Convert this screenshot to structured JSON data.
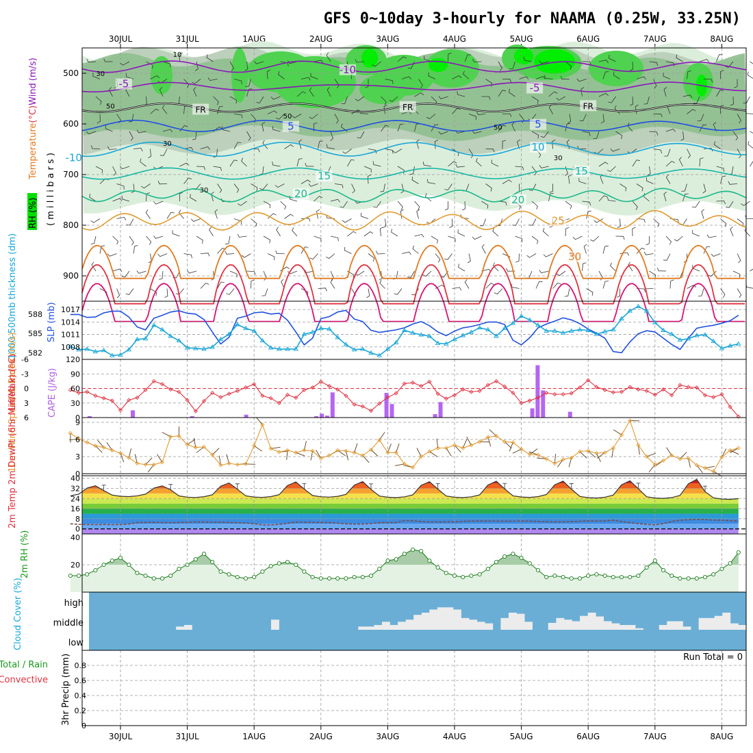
{
  "header": {
    "title": "GFS 0~10day 3-hourly for NAAMA (0.25W, 33.25N)"
  },
  "dates": [
    "30JUL",
    "31JUL",
    "1AUG",
    "2AUG",
    "3AUG",
    "4AUG",
    "5AUG",
    "6AUG",
    "7AUG",
    "8AUG"
  ],
  "colors": {
    "purple": "#8a16b8",
    "blue": "#1f4fe0",
    "cyan": "#18a6d8",
    "teal": "#16b6a6",
    "green": "#1ab88a",
    "orange": "#e09a30",
    "dorange": "#e07a20",
    "red": "#e03040",
    "magenta": "#d81070",
    "rh1": "#dbeedb",
    "rh2": "#bcd0bc",
    "rh3": "#8fbf8f",
    "rh4": "#4fd24f",
    "rh5": "#00ee00",
    "cloudbg": "#6aaed6"
  },
  "chart_data": [
    {
      "type": "contour",
      "panel": "upper-air",
      "ylabel_parts": [
        "Temperature",
        "(°C)",
        "Wind",
        "(m/s)"
      ],
      "ylabel2": "( m i l l i b a r s )",
      "rh_label": "RH (%)",
      "y_ticks": [
        "500",
        "600",
        "700",
        "800",
        "900"
      ],
      "ylim": [
        450,
        950
      ],
      "temperature_labels": [
        {
          "text": "-10",
          "day": 3.4,
          "p": 493,
          "color": "purple"
        },
        {
          "text": "-5",
          "day": 0.05,
          "p": 521,
          "color": "purple"
        },
        {
          "text": "-5",
          "day": 6.2,
          "p": 529,
          "color": "purple"
        },
        {
          "text": "FR",
          "day": 1.2,
          "p": 571,
          "color": "black"
        },
        {
          "text": "FR",
          "day": 4.3,
          "p": 566,
          "color": "black"
        },
        {
          "text": "FR",
          "day": 7.0,
          "p": 564,
          "color": "black"
        },
        {
          "text": "5",
          "day": 2.55,
          "p": 605,
          "color": "blue"
        },
        {
          "text": "5",
          "day": 6.25,
          "p": 601,
          "color": "blue"
        },
        {
          "text": "-10",
          "day": -0.7,
          "p": 667,
          "color": "cyan"
        },
        {
          "text": "10",
          "day": 6.25,
          "p": 646,
          "color": "cyan"
        },
        {
          "text": "15",
          "day": 3.05,
          "p": 703,
          "color": "teal"
        },
        {
          "text": "15",
          "day": 6.9,
          "p": 693,
          "color": "teal"
        },
        {
          "text": "20",
          "day": 2.7,
          "p": 738,
          "color": "green"
        },
        {
          "text": "20",
          "day": 5.95,
          "p": 750,
          "color": "green"
        },
        {
          "text": "25",
          "day": 6.55,
          "p": 791,
          "color": "orange"
        },
        {
          "text": "30",
          "day": 6.8,
          "p": 862,
          "color": "dorange"
        }
      ],
      "rh_shading_labels": [
        {
          "text": "10",
          "day": 0.85,
          "p": 462
        },
        {
          "text": "30",
          "day": -0.3,
          "p": 500
        },
        {
          "text": "50",
          "day": -0.15,
          "p": 564
        },
        {
          "text": "30",
          "day": 0.7,
          "p": 638
        },
        {
          "text": "30",
          "day": 1.25,
          "p": 730
        },
        {
          "text": "50",
          "day": 2.5,
          "p": 584
        },
        {
          "text": "50",
          "day": 5.65,
          "p": 606
        },
        {
          "text": "30",
          "day": 6.55,
          "p": 666
        }
      ]
    },
    {
      "type": "line",
      "panel": "slp-thickness",
      "ylabel_left": "1000-500mb thickness (dm)",
      "ylabel_right": "SLP (mb)",
      "left_ticks": [
        "588",
        "585",
        "582"
      ],
      "right_ticks": [
        "1017",
        "1014",
        "1011",
        "1008"
      ],
      "series": [
        {
          "name": "SLP",
          "color": "blue",
          "ylim": [
            1005,
            1019
          ],
          "values": [
            1015.8,
            1015.8,
            1015.1,
            1015.2,
            1016.2,
            1016.6,
            1016.6,
            1015.2,
            1012.8,
            1012.1,
            1014.9,
            1015.6,
            1016.4,
            1016.7,
            1016.1,
            1015.9,
            1014.6,
            1011.6,
            1008.7,
            1010.3,
            1014.9,
            1015.4,
            1016.2,
            1016.4,
            1015.9,
            1016.1,
            1014.4,
            1011.6,
            1008.5,
            1010.1,
            1014.8,
            1015.3,
            1016.4,
            1016.8,
            1014.7,
            1014.1,
            1012.0,
            1011.5,
            1011.8,
            1012.1,
            1012.6,
            1013.5,
            1014.1,
            1013.1,
            1011.6,
            1010.7,
            1011.8,
            1012.6,
            1012.9,
            1013.4,
            1014.0,
            1014.0,
            1013.4,
            1009.6,
            1008.5,
            1010.2,
            1012.6,
            1013.5,
            1014.2,
            1015.0,
            1014.5,
            1013.6,
            1012.3,
            1011.3,
            1010.1,
            1006.9,
            1006.6,
            1009.2,
            1011.2,
            1011.9,
            1011.6,
            1010.1,
            1008.6,
            1007.4,
            1010.1,
            1012.5,
            1012.9,
            1013.2,
            1013.7,
            1014.3,
            1015.6
          ]
        },
        {
          "name": "Thickness",
          "color": "cyan",
          "ylim": [
            581,
            590
          ],
          "values": [
            583.0,
            582.5,
            582.6,
            582.2,
            582.4,
            581.6,
            581.7,
            582.5,
            584.1,
            584.2,
            586.3,
            585.6,
            584.6,
            583.9,
            582.8,
            582.7,
            582.6,
            582.9,
            584.1,
            584.9,
            586.4,
            585.8,
            585.4,
            583.9,
            582.8,
            582.6,
            582.6,
            582.6,
            584.9,
            585.2,
            585.8,
            585.7,
            584.4,
            583.3,
            582.5,
            582.6,
            582.0,
            581.6,
            582.6,
            583.6,
            585.5,
            585.1,
            584.8,
            584.6,
            583.5,
            583.4,
            584.1,
            584.7,
            585.2,
            585.9,
            585.6,
            584.6,
            585.8,
            586.6,
            587.7,
            587.1,
            586.3,
            585.4,
            585.4,
            585.1,
            585.4,
            585.6,
            585.5,
            584.9,
            585.3,
            585.6,
            587.3,
            588.5,
            589.2,
            588.5,
            586.7,
            585.5,
            584.9,
            584.0,
            584.2,
            584.7,
            584.8,
            583.8,
            582.7,
            583.1,
            583.4
          ]
        }
      ]
    },
    {
      "type": "line+bar",
      "panel": "lifted-cape",
      "ylabel_left": "Lifted Index",
      "ylabel_right": "CAPE (J/kg)",
      "li_ticks": [
        "-6",
        "-3",
        "0",
        "3",
        "6"
      ],
      "cape_ticks": [
        "120",
        "90",
        "60",
        "30",
        "0"
      ],
      "series": [
        {
          "name": "Lifted Index",
          "color": "red",
          "ylim": [
            6,
            -6
          ],
          "values": [
            0.3,
            0.9,
            0.7,
            1.5,
            2.0,
            2.5,
            4.5,
            2.4,
            1.9,
            0.3,
            -1.5,
            -0.9,
            0.2,
            0.7,
            2.4,
            4.7,
            2.6,
            0.9,
            1.8,
            1.1,
            0.5,
            -0.2,
            -0.9,
            1.5,
            2.0,
            3.0,
            1.3,
            1.9,
            0.3,
            -0.2,
            -1.4,
            -0.5,
            0.2,
            1.5,
            3.3,
            3.7,
            4.6,
            3.1,
            1.8,
            1.0,
            -1.0,
            -1.2,
            -0.5,
            -1.4,
            1.1,
            2.1,
            1.4,
            0.2,
            0.7,
            0.5,
            -0.7,
            -1.5,
            -0.4,
            0.9,
            3.0,
            2.5,
            1.9,
            0.9,
            1.2,
            1.2,
            1.0,
            -0.2,
            -1.7,
            -0.3,
            0.3,
            0.8,
            0.7,
            -0.3,
            0.2,
            0.5,
            1.3,
            0.2,
            1.4,
            -0.7,
            -0.3,
            -0.2,
            1.4,
            1.8,
            1.2,
            3.8,
            5.8
          ]
        },
        {
          "name": "CAPE",
          "color": "violet",
          "ylim": [
            0,
            120
          ],
          "values": [
            0,
            3,
            0,
            0,
            0,
            0,
            0,
            0,
            0,
            15,
            0,
            0,
            0,
            0,
            0,
            0,
            0,
            0,
            0,
            0,
            3,
            0,
            0,
            0,
            0,
            0,
            0,
            0,
            0,
            0,
            6,
            0,
            0,
            0,
            0,
            0,
            0,
            0,
            0,
            0,
            0,
            0,
            0,
            3,
            8,
            4,
            52,
            0,
            0,
            0,
            0,
            0,
            0,
            0,
            0,
            0,
            51,
            28,
            0,
            0,
            0,
            0,
            0,
            0,
            0,
            7,
            32,
            0,
            0,
            0,
            0,
            0,
            0,
            0,
            0,
            0,
            0,
            0,
            0,
            0,
            0,
            0,
            0,
            19,
            108,
            56,
            0,
            0,
            0,
            0,
            12,
            0,
            0,
            0,
            0,
            0,
            0,
            0,
            0,
            0,
            0,
            0,
            0,
            0,
            0,
            0,
            0,
            0,
            0,
            0,
            0,
            0,
            0,
            0,
            0,
            0,
            0,
            0,
            0,
            0,
            0,
            0,
            0
          ]
        }
      ]
    },
    {
      "type": "line",
      "panel": "wind10m",
      "ylabel": "10m Wind Speed & Barbs (m/s)",
      "ticks": [
        "9",
        "6",
        "3",
        "0"
      ],
      "ylim": [
        0,
        9.6
      ],
      "series": [
        {
          "name": "10m Wind Speed",
          "color": "orange",
          "values": [
            7.1,
            6.1,
            5.5,
            4.9,
            4.6,
            4.1,
            3.6,
            2.8,
            1.8,
            1.6,
            1.6,
            2.0,
            6.5,
            6.6,
            5.1,
            4.6,
            4.7,
            3.3,
            1.5,
            1.8,
            1.6,
            1.7,
            4.9,
            8.6,
            4.4,
            3.8,
            4.1,
            3.7,
            4.1,
            4.0,
            2.7,
            3.2,
            4.1,
            4.0,
            3.7,
            3.2,
            4.2,
            5.9,
            3.7,
            3.7,
            1.7,
            1.1,
            3.0,
            3.9,
            4.5,
            4.5,
            5.0,
            4.5,
            5.0,
            5.6,
            6.4,
            6.6,
            5.6,
            5.5,
            4.3,
            3.4,
            3.3,
            2.6,
            1.8,
            2.5,
            2.8,
            3.9,
            4.0,
            3.6,
            3.7,
            4.5,
            6.8,
            9.3,
            5.0,
            3.0,
            1.6,
            2.3,
            3.2,
            2.6,
            2.7,
            1.5,
            1.0,
            0.4,
            2.9,
            4.1,
            4.5
          ]
        }
      ]
    },
    {
      "type": "line+area",
      "panel": "temperature",
      "ylabel": "2m Temp 2m DewPt (6hr Min/Max) (°C)",
      "ticks": [
        "40",
        "32",
        "24",
        "16",
        "8",
        "0"
      ],
      "ylim": [
        -4,
        42
      ],
      "temp_peaks": [
        34.2,
        36.5,
        37.3,
        37.6,
        37.5,
        37.9,
        38.0,
        38.2,
        39.4,
        35.1
      ],
      "temp_troughs": [
        27.0,
        26.3,
        26.4,
        26.6,
        26.2,
        26.2,
        26.4,
        25.9,
        25.6,
        24.8
      ],
      "dewpoint": [
        4.0,
        3.6,
        3.6,
        3.3,
        3.5,
        3.3,
        3.4,
        3.9,
        4.9,
        5.1,
        5.2,
        5.0,
        4.8,
        5.0,
        5.3,
        5.4,
        5.4,
        5.3,
        5.3,
        5.0,
        4.8,
        4.6,
        4.1,
        3.2,
        3.1,
        3.6,
        4.4,
        5.4,
        5.3,
        5.2,
        5.1,
        4.9,
        4.5,
        4.0,
        3.8,
        3.8,
        4.3,
        4.9,
        5.0,
        5.0,
        6.6,
        6.4,
        5.8,
        5.4,
        5.4,
        5.6,
        5.5,
        5.9,
        6.2,
        6.3,
        6.2,
        6.1,
        6.1,
        6.0,
        6.3,
        6.1,
        5.9,
        5.7,
        5.6,
        5.6,
        5.8,
        6.0,
        6.4,
        6.1,
        6.3,
        6.9,
        5.8,
        4.9,
        4.2,
        3.5,
        3.2,
        4.1,
        5.9,
        6.8,
        7.2,
        7.6,
        7.3,
        7.0,
        6.9,
        6.5,
        6.2
      ]
    },
    {
      "type": "area",
      "panel": "rh2m",
      "ylabel": "2m RH (%)",
      "ticks": [
        "40",
        "20"
      ],
      "ylim": [
        0,
        40
      ],
      "series": [
        {
          "name": "2m RH",
          "color": "green",
          "values": [
            12,
            12,
            13,
            16,
            20,
            23,
            25,
            20,
            14,
            12,
            10,
            10,
            12,
            17,
            20,
            24,
            28,
            22,
            15,
            13,
            11,
            10,
            11,
            15,
            19,
            21,
            22,
            20,
            15,
            11,
            10,
            10,
            10,
            10,
            11,
            11,
            12,
            17,
            23,
            24,
            28,
            31,
            30,
            23,
            18,
            14,
            12,
            11,
            12,
            13,
            17,
            22,
            26,
            28,
            25,
            21,
            16,
            11,
            12,
            11,
            10,
            10,
            12,
            13,
            12,
            11,
            11,
            11,
            12,
            18,
            23,
            16,
            12,
            10,
            10,
            10,
            11,
            13,
            17,
            21,
            29
          ]
        }
      ]
    },
    {
      "type": "bar",
      "panel": "cloud",
      "ylabel": "Cloud Cover (%)",
      "levels": [
        "high",
        "middle",
        "low"
      ],
      "values": [
        0,
        0,
        0,
        0,
        0,
        0,
        0,
        0,
        0,
        0,
        0,
        6,
        9,
        0,
        0,
        0,
        0,
        0,
        0,
        0,
        0,
        0,
        0,
        19,
        0,
        0,
        0,
        0,
        0,
        0,
        0,
        0,
        0,
        0,
        6,
        6,
        9,
        15,
        9,
        15,
        19,
        28,
        32,
        38,
        42,
        42,
        38,
        22,
        19,
        15,
        12,
        0,
        22,
        32,
        30,
        15,
        0,
        0,
        13,
        22,
        19,
        16,
        26,
        32,
        25,
        16,
        12,
        9,
        9,
        3,
        0,
        0,
        9,
        16,
        16,
        6,
        0,
        22,
        22,
        26,
        32,
        12,
        9
      ]
    },
    {
      "type": "bar",
      "panel": "precip",
      "ylabel": "3hr Precip (mm)",
      "legend": [
        "Total / Rain",
        "Convective"
      ],
      "ticks": [
        "0.8",
        "0.6",
        "0.4",
        "0.2",
        "0"
      ],
      "ylim": [
        0,
        1
      ],
      "run_total": "Run Total = 0",
      "values": []
    }
  ]
}
